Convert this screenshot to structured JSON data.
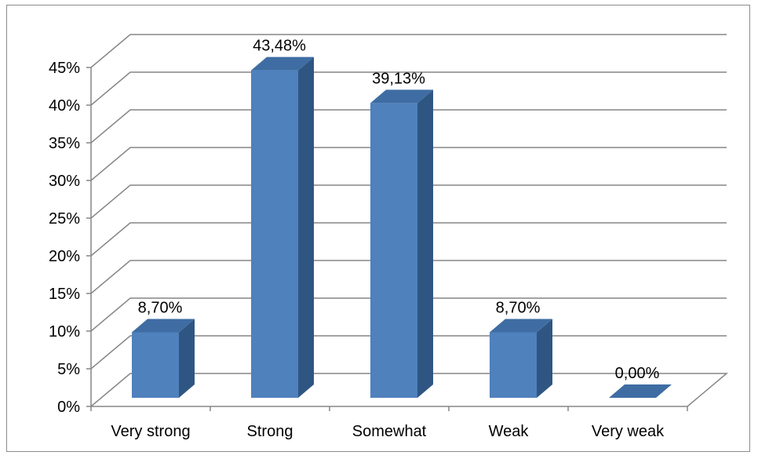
{
  "chart_data": {
    "type": "bar",
    "categories": [
      "Very strong",
      "Strong",
      "Somewhat",
      "Weak",
      "Very weak"
    ],
    "values": [
      8.7,
      43.48,
      39.13,
      8.7,
      0.0
    ],
    "data_labels": [
      "8,70%",
      "43,48%",
      "39,13%",
      "8,70%",
      "0,00%"
    ],
    "y_ticks": [
      "0%",
      "5%",
      "10%",
      "15%",
      "20%",
      "25%",
      "30%",
      "35%",
      "40%",
      "45%"
    ],
    "ylim": [
      0,
      45
    ],
    "title": "",
    "xlabel": "",
    "ylabel": "",
    "grid": true,
    "legend": "none",
    "bar_front_color": "#4F81BD",
    "bar_side_color": "#2F5683",
    "bar_top_color": "#3F6DA3",
    "grid_color": "#868686"
  }
}
